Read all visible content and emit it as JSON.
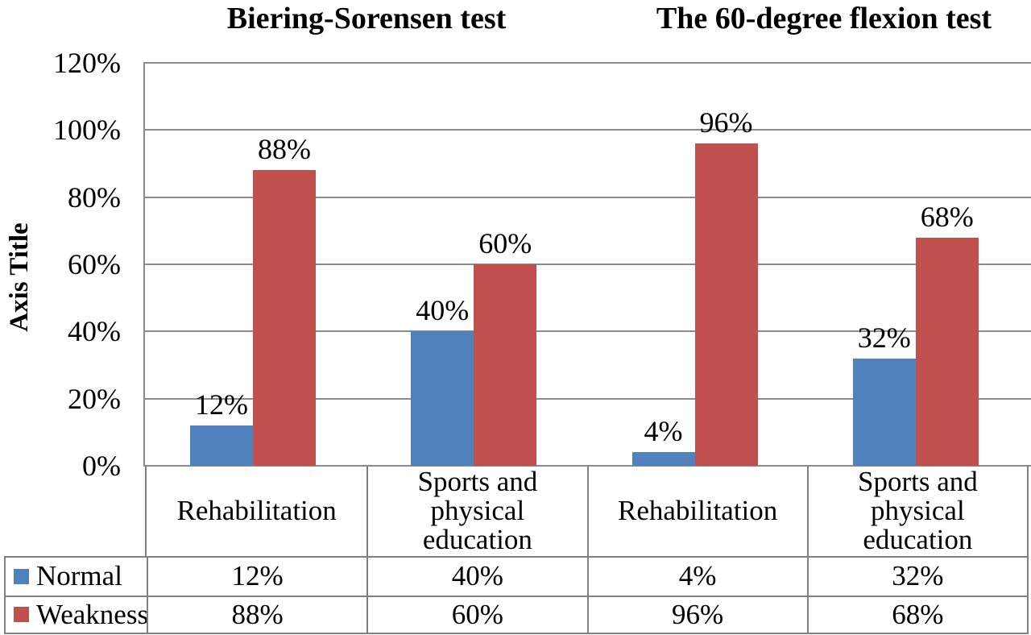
{
  "chart_data": {
    "type": "bar",
    "titles": [
      "Biering-Sorensen test",
      "The 60-degree flexion test"
    ],
    "y_axis": {
      "label": "Axis Title",
      "ticks": [
        "120%",
        "100%",
        "80%",
        "60%",
        "40%",
        "20%",
        "0%"
      ],
      "min": 0,
      "max": 120,
      "step": 20,
      "unit": "%"
    },
    "grid": true,
    "data_labels": true,
    "legend_position": "bottom-table-left-column",
    "categories": [
      {
        "label": "Rehabilitation",
        "lines": [
          "Rehabilitation"
        ]
      },
      {
        "label": "Sports and physical education",
        "lines": [
          "Sports and",
          "physical",
          "education"
        ]
      },
      {
        "label": "Rehabilitation",
        "lines": [
          "Rehabilitation"
        ]
      },
      {
        "label": "Sports and physical education",
        "lines": [
          "Sports and",
          "physical",
          "education"
        ]
      }
    ],
    "category_groups": [
      {
        "title": "Biering-Sorensen test",
        "category_indexes": [
          0,
          1
        ]
      },
      {
        "title": "The 60-degree flexion test",
        "category_indexes": [
          2,
          3
        ]
      }
    ],
    "series": [
      {
        "name": "Normal",
        "color": "#4f81bd",
        "values": [
          12,
          40,
          4,
          32
        ],
        "labels": [
          "12%",
          "40%",
          "4%",
          "32%"
        ]
      },
      {
        "name": "Weakness",
        "color": "#c0504d",
        "values": [
          88,
          60,
          96,
          68
        ],
        "labels": [
          "88%",
          "60%",
          "96%",
          "68%"
        ]
      }
    ],
    "colors": {
      "normal_series": "#4f81bd",
      "weakness_series": "#c0504d",
      "gridline": "#8c8c8c",
      "table_border": "#808080",
      "text": "#000000",
      "background": "#ffffff"
    }
  }
}
